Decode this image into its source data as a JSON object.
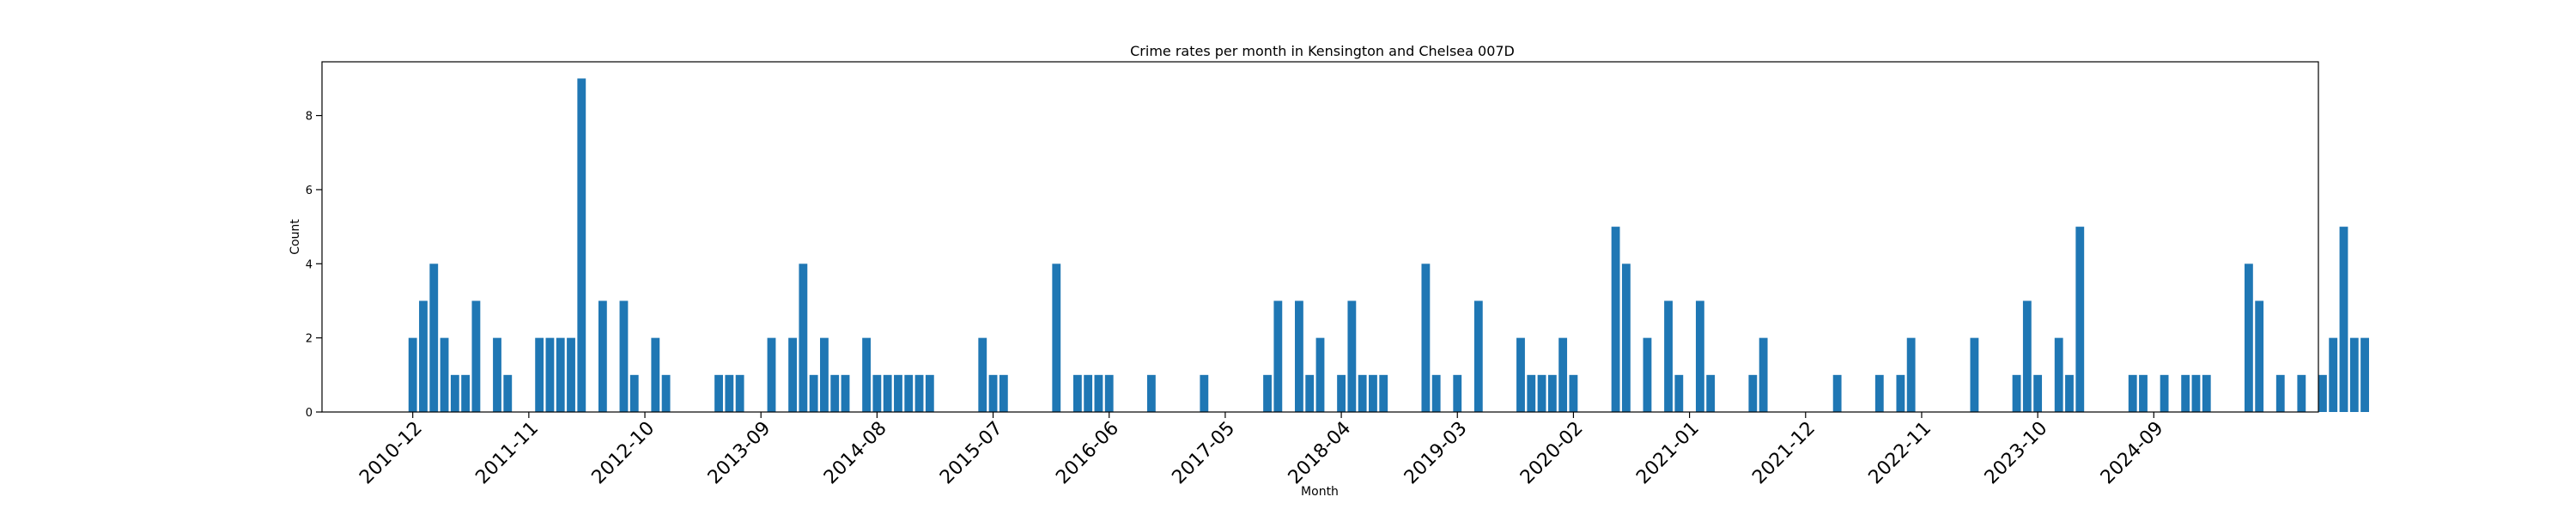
{
  "chart_data": {
    "type": "bar",
    "title": "Crime rates per month in Kensington and Chelsea 007D",
    "xlabel": "Month",
    "ylabel": "Count",
    "ylim": [
      0,
      9.45
    ],
    "xlim": [
      -8.6,
      180.6
    ],
    "yticks": [
      0,
      2,
      4,
      6,
      8
    ],
    "xtick_labels": [
      "2010-12",
      "2011-11",
      "2012-10",
      "2013-09",
      "2014-08",
      "2015-07",
      "2016-06",
      "2017-05",
      "2018-04",
      "2019-03",
      "2020-02",
      "2021-01",
      "2021-12",
      "2022-11",
      "2023-10",
      "2024-09"
    ],
    "start_month": "2010-12",
    "bar_color": "#1f77b4",
    "grid": false,
    "values": [
      2,
      3,
      4,
      2,
      1,
      1,
      3,
      0,
      2,
      1,
      0,
      0,
      2,
      2,
      2,
      2,
      9,
      0,
      3,
      0,
      3,
      1,
      0,
      2,
      1,
      0,
      0,
      0,
      0,
      1,
      1,
      1,
      0,
      0,
      2,
      0,
      2,
      4,
      1,
      2,
      1,
      1,
      0,
      2,
      1,
      1,
      1,
      1,
      1,
      1,
      0,
      0,
      0,
      0,
      2,
      1,
      1,
      0,
      0,
      0,
      0,
      4,
      0,
      1,
      1,
      1,
      1,
      0,
      0,
      0,
      1,
      0,
      0,
      0,
      0,
      1,
      0,
      0,
      0,
      0,
      0,
      1,
      3,
      0,
      3,
      1,
      2,
      0,
      1,
      3,
      1,
      1,
      1,
      0,
      0,
      0,
      4,
      1,
      0,
      1,
      0,
      3,
      0,
      0,
      0,
      2,
      1,
      1,
      1,
      2,
      1,
      0,
      0,
      0,
      5,
      4,
      0,
      2,
      0,
      3,
      1,
      0,
      3,
      1,
      0,
      0,
      0,
      1,
      2,
      0,
      0,
      0,
      0,
      0,
      0,
      1,
      0,
      0,
      0,
      1,
      0,
      1,
      2,
      0,
      0,
      0,
      0,
      0,
      2,
      0,
      0,
      0,
      1,
      3,
      1,
      0,
      2,
      1,
      5,
      0,
      0,
      0,
      0,
      1,
      1,
      0,
      1,
      0,
      1,
      1,
      1,
      0,
      0,
      0,
      4,
      3,
      0,
      1,
      0,
      1,
      0,
      1,
      2,
      5,
      2,
      2
    ]
  }
}
